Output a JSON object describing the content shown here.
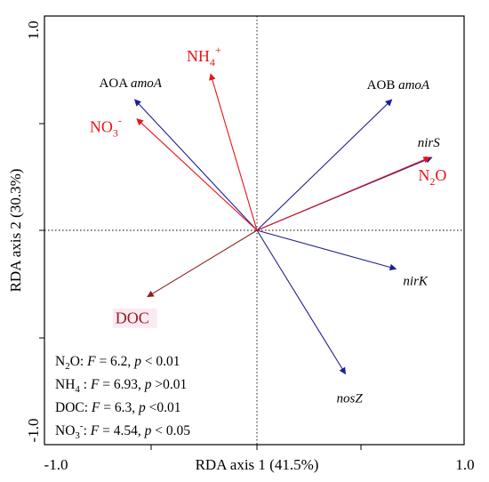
{
  "chart_data": {
    "type": "biplot",
    "xlabel": "RDA axis 1 (41.5%)",
    "ylabel": "RDA axis 2 (30.3%)",
    "xlim": [
      -1.0,
      1.0
    ],
    "ylim": [
      -1.0,
      1.0
    ],
    "x_ticks": [
      "-1.0",
      "1.0"
    ],
    "y_ticks": [
      "1.0",
      "-1.0"
    ],
    "grid": false,
    "reference_lines": "dotted lines at x = 0 and y = 0",
    "colors": {
      "species": "#1f1f8f",
      "environment": "#e8141b",
      "doc_arrow": "#8b2020",
      "frame": "#000000"
    },
    "species_vectors": [
      {
        "name": "AOA",
        "gene": "amoA",
        "x": -0.58,
        "y": 0.61
      },
      {
        "name": "AOB",
        "gene": "amoA",
        "x": 0.64,
        "y": 0.61
      },
      {
        "name": "",
        "gene": "nirS",
        "x": 0.83,
        "y": 0.34
      },
      {
        "name": "",
        "gene": "nirK",
        "x": 0.66,
        "y": -0.18
      },
      {
        "name": "",
        "gene": "nosZ",
        "x": 0.42,
        "y": -0.67
      }
    ],
    "environment_vectors": [
      {
        "base": "NH",
        "sub": "4",
        "sup": "+",
        "x": -0.22,
        "y": 0.73
      },
      {
        "base": "NO",
        "sub": "3",
        "sup": "-",
        "x": -0.57,
        "y": 0.52
      },
      {
        "base": "N",
        "sub": "2",
        "sup": "",
        "tail": "O",
        "x": 0.82,
        "y": 0.34
      },
      {
        "base": "DOC",
        "sub": "",
        "sup": "",
        "x": -0.52,
        "y": -0.31
      }
    ],
    "statistics": [
      {
        "lead": "N",
        "sub": "2",
        "sup": "",
        "tail": "O",
        "sep": ": ",
        "F": "6.2",
        "p_op": "< 0.01"
      },
      {
        "lead": "NH",
        "sub": "4",
        "sup": "",
        "tail": "",
        "sep": " : ",
        "F": "6.93",
        "p_op": ">0.01"
      },
      {
        "lead": "DOC",
        "sub": "",
        "sup": "",
        "tail": "",
        "sep": ": ",
        "F": "6.3",
        "p_op": "<0.01"
      },
      {
        "lead": "NO",
        "sub": "3",
        "sup": "-",
        "tail": "",
        "sep": ": ",
        "F": "4.54",
        "p_op": "< 0.05"
      }
    ],
    "stat_format": {
      "F_label": "F",
      "p_label": "p",
      "equals": " = ",
      "comma": ", ",
      "p_sep": " "
    }
  }
}
